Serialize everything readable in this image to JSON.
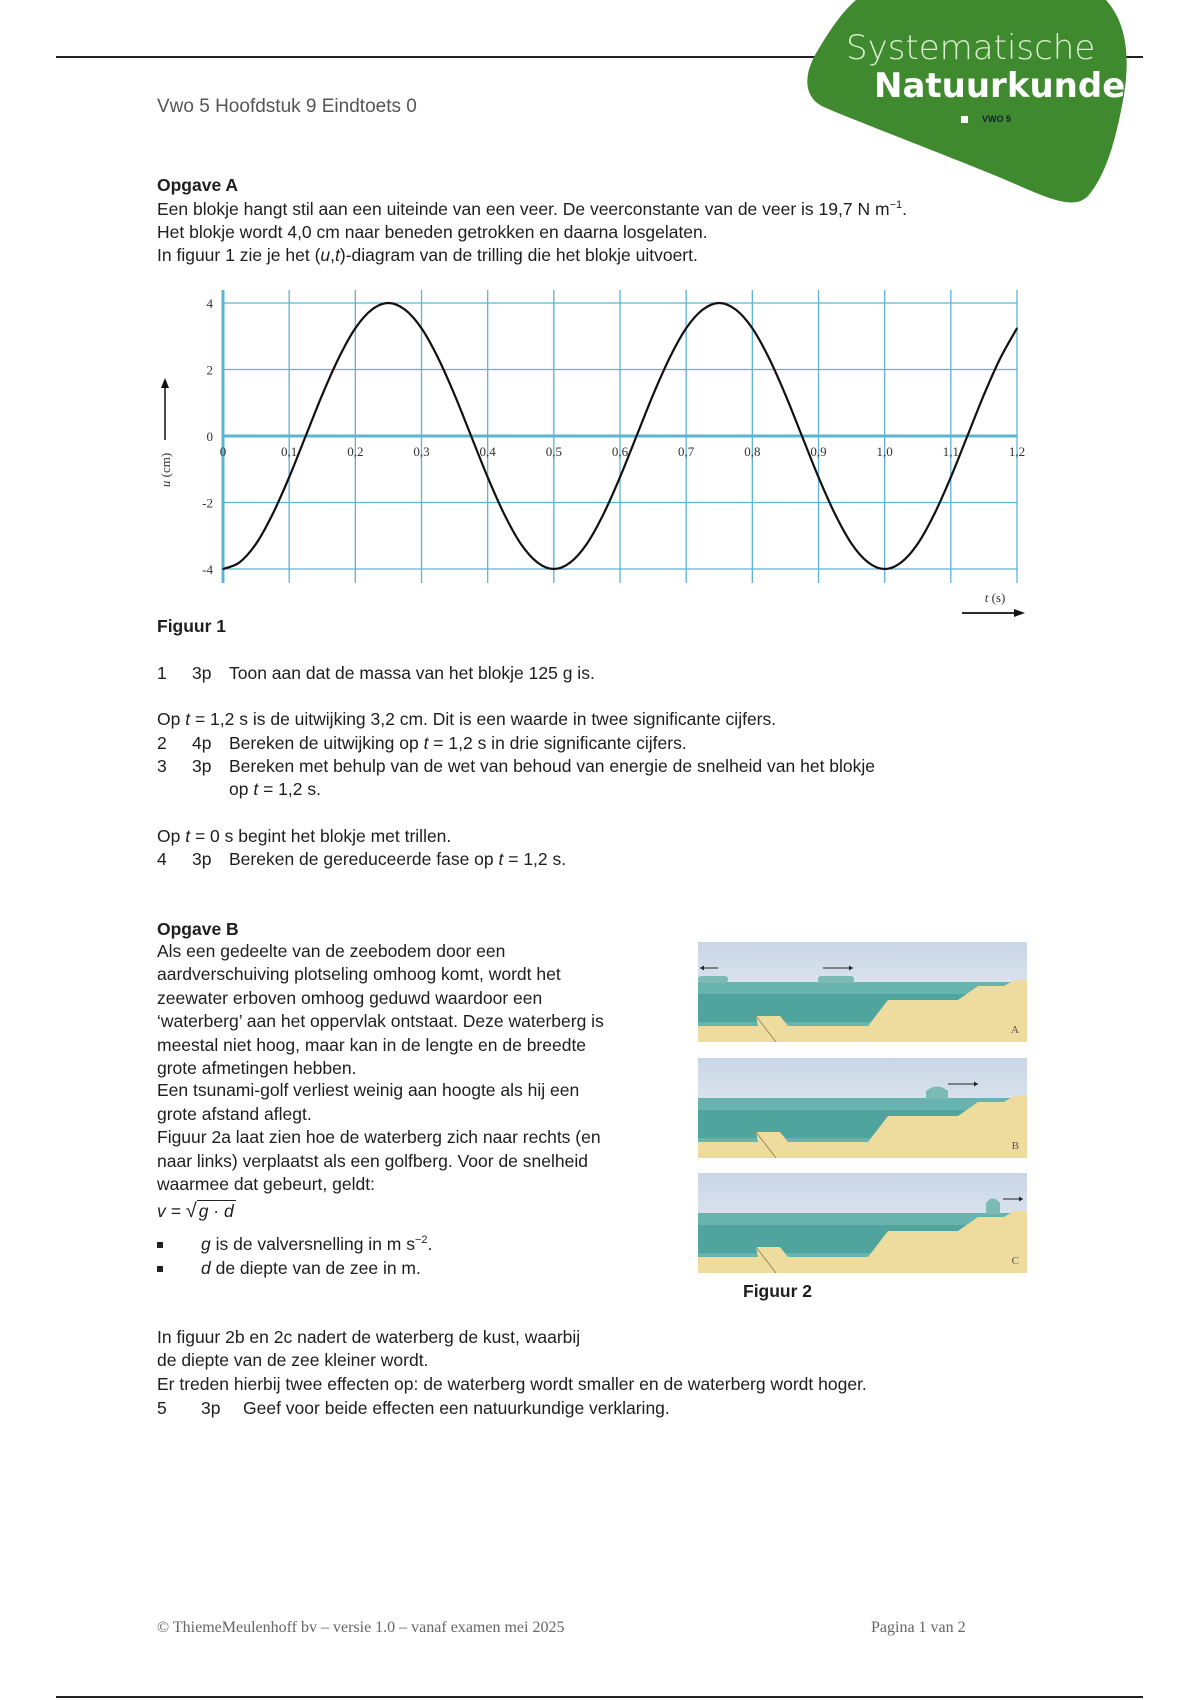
{
  "header": {
    "title": "Vwo 5 Hoofdstuk 9 Eindtoets 0"
  },
  "logo": {
    "line1": "Systematische",
    "line2": "Natuurkunde",
    "sub": "VWO 5",
    "color": "#3f8a2e"
  },
  "opgave_a": {
    "heading": "Opgave A",
    "line1": "Een blokje hangt stil aan een uiteinde van een veer. De veerconstante van de veer is 19,7 N m",
    "line1_sup": "−1",
    "line1_end": ".",
    "line2": "Het blokje wordt 4,0 cm naar beneden getrokken en daarna losgelaten.",
    "line3_pre": "In figuur 1 zie je het (",
    "line3_var1": "u",
    "line3_comma": ",",
    "line3_var2": "t",
    "line3_post": ")-diagram van de trilling die het blokje uitvoert.",
    "figure_caption": "Figuur 1",
    "q1": {
      "num": "1",
      "points": "3p",
      "text": "Toon aan dat de massa van het blokje 125 g is."
    },
    "intro2_pre": "Op ",
    "intro2_var": "t",
    "intro2_post": " = 1,2 s is de uitwijking 3,2 cm. Dit is een waarde in twee significante cijfers.",
    "q2": {
      "num": "2",
      "points": "4p",
      "pre": "Bereken de uitwijking op ",
      "var": "t",
      "post": " = 1,2 s in drie significante cijfers."
    },
    "q3": {
      "num": "3",
      "points": "3p",
      "text": "Bereken met behulp van de wet van behoud van energie de snelheid van het blokje",
      "pre2": "op ",
      "var2": "t",
      "post2": " = 1,2 s."
    },
    "intro4_pre": "Op ",
    "intro4_var": "t",
    "intro4_post": " = 0 s begint het blokje met trillen.",
    "q4": {
      "num": "4",
      "points": "3p",
      "pre": "Bereken de gereduceerde fase op ",
      "var": "t",
      "post": " = 1,2 s."
    }
  },
  "chart_data": {
    "type": "line",
    "xlabel_var": "t",
    "xlabel_unit": " (s)",
    "ylabel_var": "u",
    "ylabel_unit": " (cm)",
    "xlim": [
      0,
      1.2
    ],
    "ylim": [
      -4,
      4
    ],
    "grid": true,
    "grid_color": "#5db3d4",
    "x_ticks": [
      "0",
      "0,1",
      "0,2",
      "0,3",
      "0,4",
      "0,5",
      "0,6",
      "0,7",
      "0,8",
      "0,9",
      "1,0",
      "1,1",
      "1,2"
    ],
    "y_ticks": [
      "4",
      "2",
      "0",
      "-2",
      "-4"
    ],
    "x": [
      0,
      0.025,
      0.05,
      0.075,
      0.1,
      0.125,
      0.15,
      0.175,
      0.2,
      0.225,
      0.25,
      0.275,
      0.3,
      0.325,
      0.35,
      0.375,
      0.4,
      0.425,
      0.45,
      0.475,
      0.5,
      0.525,
      0.55,
      0.575,
      0.6,
      0.625,
      0.65,
      0.675,
      0.7,
      0.725,
      0.75,
      0.775,
      0.8,
      0.825,
      0.85,
      0.875,
      0.9,
      0.925,
      0.95,
      0.975,
      1.0,
      1.025,
      1.05,
      1.075,
      1.1,
      1.125,
      1.15,
      1.175,
      1.2
    ],
    "y": [
      -4,
      -3.8,
      -3.24,
      -2.35,
      -1.24,
      0,
      1.24,
      2.35,
      3.24,
      3.8,
      4,
      3.8,
      3.24,
      2.35,
      1.24,
      0,
      -1.24,
      -2.35,
      -3.24,
      -3.8,
      -4,
      -3.8,
      -3.24,
      -2.35,
      -1.24,
      0,
      1.24,
      2.35,
      3.24,
      3.8,
      4,
      3.8,
      3.24,
      2.35,
      1.24,
      0,
      -1.24,
      -2.35,
      -3.24,
      -3.8,
      -4,
      -3.8,
      -3.24,
      -2.35,
      -1.24,
      0,
      1.24,
      2.35,
      3.24
    ]
  },
  "opgave_b": {
    "heading": "Opgave B",
    "lines": [
      "Als een gedeelte van de zeebodem door een",
      "aardverschuiving plotseling omhoog komt, wordt het",
      "zeewater erboven omhoog geduwd waardoor een",
      "‘waterberg’ aan het oppervlak ontstaat. Deze waterberg is",
      "meestal niet hoog, maar kan in de lengte en de breedte",
      "grote afmetingen hebben.",
      "Een tsunami-golf verliest weinig aan hoogte als hij een",
      "grote afstand aflegt.",
      "Figuur 2a laat zien hoe de waterberg zich naar rechts (en",
      "naar links) verplaatst als een golfberg. Voor de snelheid",
      "waarmee dat gebeurt, geldt:"
    ],
    "formula_lhs": "v =",
    "formula_rad": "g · d",
    "bullet1_var": "g",
    "bullet1_text": " is de valversnelling in m s",
    "bullet1_sup": "−2",
    "bullet1_end": ".",
    "bullet2_var": "d",
    "bullet2_text": " de diepte van de zee in m.",
    "panels": [
      "A",
      "B",
      "C"
    ],
    "figure_caption": "Figuur 2",
    "after1": "In figuur 2b en 2c nadert de waterberg de kust, waarbij",
    "after2": "de diepte van de zee kleiner wordt.",
    "after3": "Er treden hierbij twee effecten op: de waterberg wordt smaller en de waterberg wordt hoger.",
    "q5": {
      "num": "5",
      "points": "3p",
      "text": "Geef voor beide effecten een natuurkundige verklaring."
    }
  },
  "footer": {
    "left": "© ThiemeMeulenhoff bv – versie 1.0 – vanaf examen mei 2025",
    "right": "Pagina 1 van 2"
  }
}
